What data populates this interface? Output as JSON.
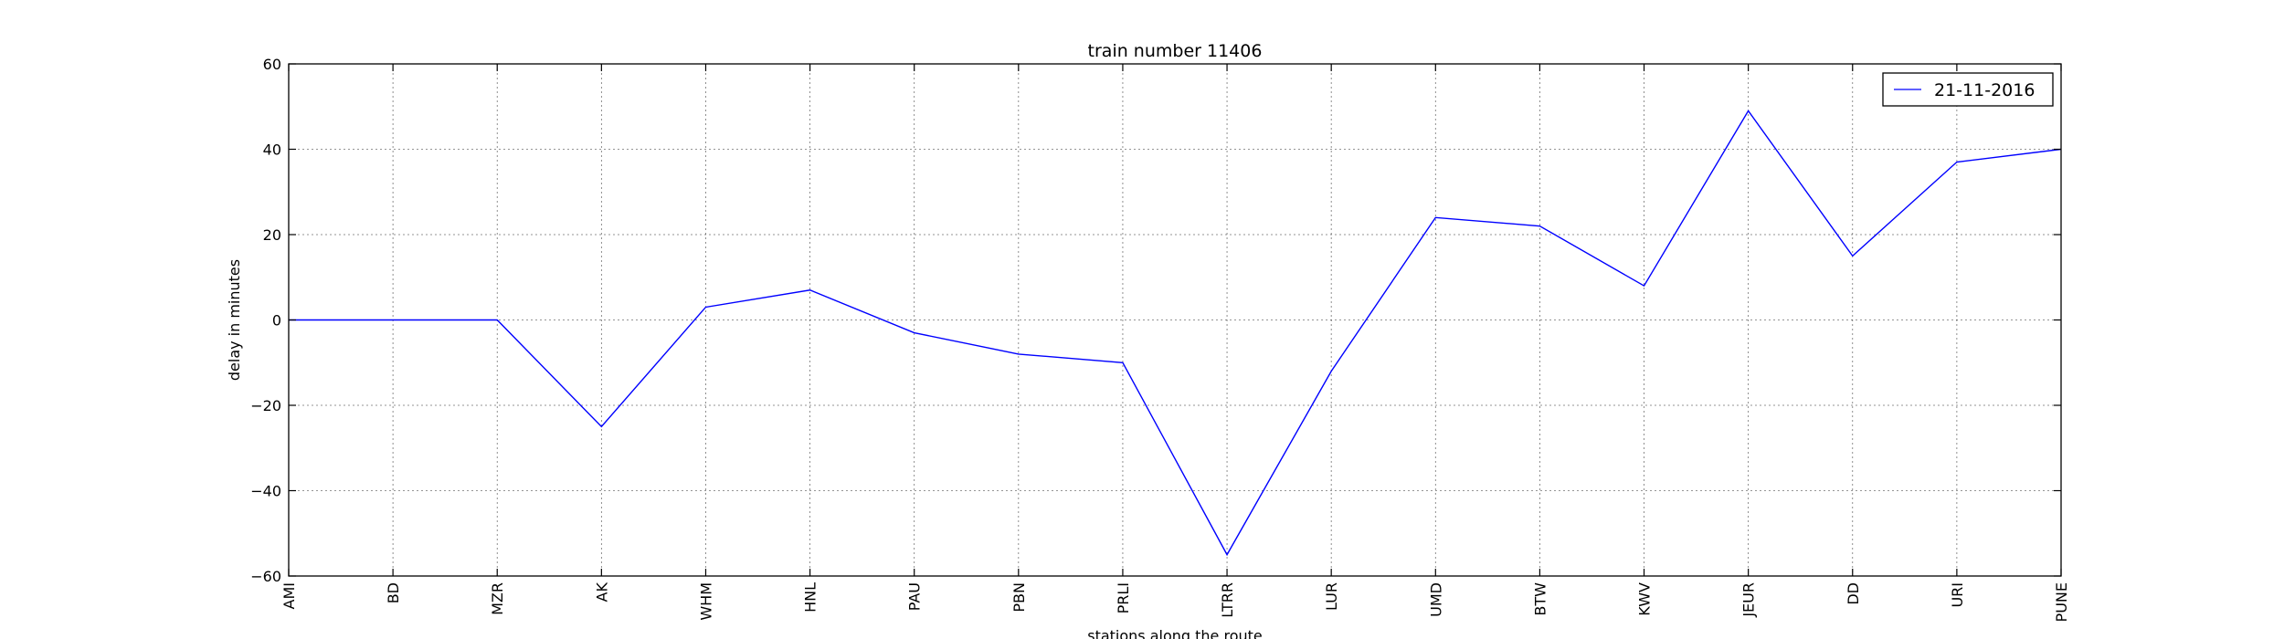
{
  "chart_data": {
    "type": "line",
    "title": "train number 11406",
    "xlabel": "stations along the route",
    "ylabel": "delay in minutes",
    "categories": [
      "AMI",
      "BD",
      "MZR",
      "AK",
      "WHM",
      "HNL",
      "PAU",
      "PBN",
      "PRLI",
      "LTRR",
      "LUR",
      "UMD",
      "BTW",
      "KWV",
      "JEUR",
      "DD",
      "URI",
      "PUNE"
    ],
    "series": [
      {
        "name": "21-11-2016",
        "color": "#0000ff",
        "values": [
          0,
          0,
          0,
          -25,
          3,
          7,
          -3,
          -8,
          -10,
          -55,
          -12,
          24,
          22,
          8,
          49,
          15,
          37,
          40
        ]
      }
    ],
    "ylim": [
      -60,
      60
    ],
    "yticks": [
      60,
      40,
      20,
      0,
      -20,
      -40,
      -60
    ],
    "ytick_labels": [
      "60",
      "40",
      "20",
      "0",
      "−20",
      "−40",
      "−60"
    ],
    "grid": true,
    "legend_position": "upper right"
  }
}
